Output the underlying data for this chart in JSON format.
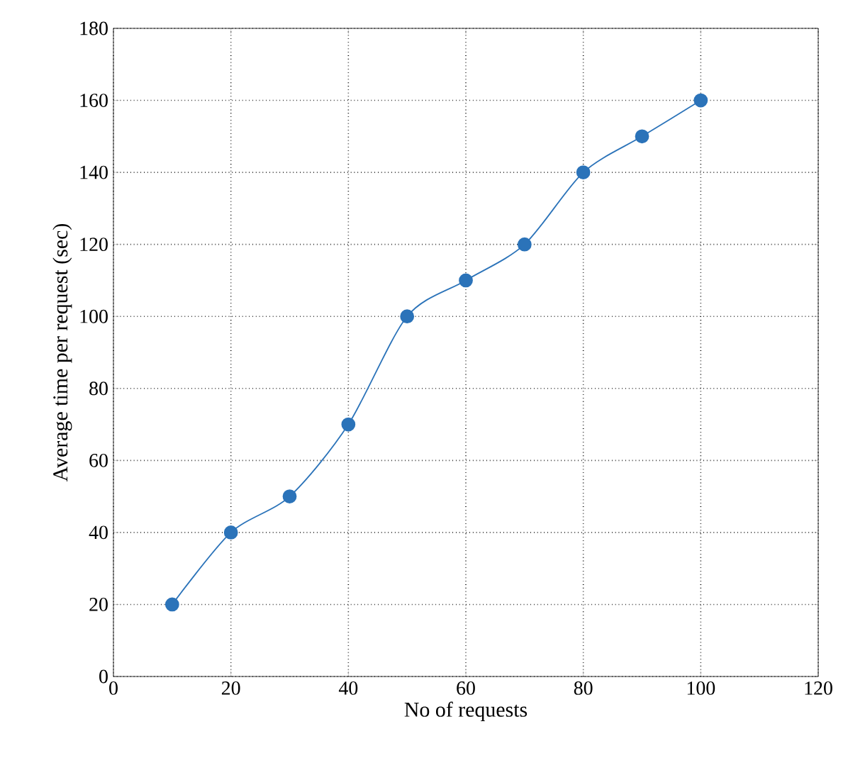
{
  "chart_data": {
    "type": "line",
    "xlabel": "No of requests",
    "ylabel": "Average time per request (sec)",
    "x": [
      10,
      20,
      30,
      40,
      50,
      60,
      70,
      80,
      90,
      100
    ],
    "series": [
      {
        "color": "#2b73b9",
        "values": [
          20,
          40,
          50,
          70,
          100,
          110,
          120,
          140,
          150,
          160
        ]
      }
    ],
    "xlim": [
      0,
      120
    ],
    "xticks": [
      0,
      20,
      40,
      60,
      80,
      100,
      120
    ],
    "ylim": [
      0,
      180
    ],
    "yticks": [
      0,
      20,
      40,
      60,
      80,
      100,
      120,
      140,
      160,
      180
    ],
    "grid": true,
    "marker": "circle",
    "line_style": "solid"
  }
}
